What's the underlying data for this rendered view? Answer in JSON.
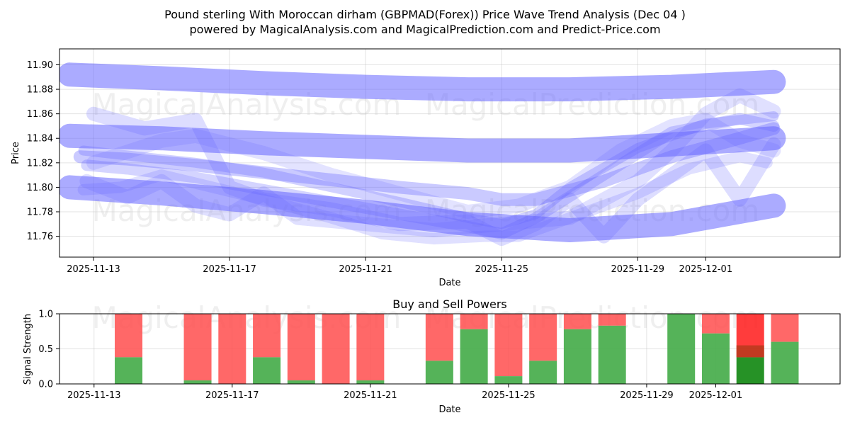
{
  "chart_data": [
    {
      "type": "area",
      "title_line1": "Pound sterling With Moroccan dirham (GBPMAD(Forex)) Price Wave Trend Analysis (Dec 04 )",
      "title_line2": "powered by MagicalAnalysis.com and MagicalPrediction.com and Predict-Price.com",
      "xlabel": "Date",
      "ylabel": "Price",
      "ylim": [
        11.743,
        11.913
      ],
      "xlim": [
        -1.0,
        21.95
      ],
      "x_ticks": [
        {
          "x": 0,
          "label": "2025-11-13"
        },
        {
          "x": 4,
          "label": "2025-11-17"
        },
        {
          "x": 8,
          "label": "2025-11-21"
        },
        {
          "x": 12,
          "label": "2025-11-25"
        },
        {
          "x": 16,
          "label": "2025-11-29"
        },
        {
          "x": 18,
          "label": "2025-12-01"
        }
      ],
      "y_ticks": [
        11.76,
        11.78,
        11.8,
        11.82,
        11.84,
        11.86,
        11.88,
        11.9
      ],
      "y_tick_labels": [
        "11.76",
        "11.78",
        "11.80",
        "11.82",
        "11.84",
        "11.86",
        "11.88",
        "11.90"
      ],
      "band_color": "#6666ff",
      "series": [
        {
          "name": "upper-band",
          "x": [
            -0.7,
            2,
            5,
            8,
            11,
            14,
            17,
            20
          ],
          "values": [
            11.892,
            11.889,
            11.885,
            11.882,
            11.88,
            11.88,
            11.882,
            11.886
          ],
          "width": 34,
          "opacity": 0.55
        },
        {
          "name": "mid-band",
          "x": [
            -0.7,
            2,
            5,
            8,
            11,
            14,
            17,
            20
          ],
          "values": [
            11.842,
            11.84,
            11.836,
            11.833,
            11.83,
            11.83,
            11.835,
            11.84
          ],
          "width": 34,
          "opacity": 0.55
        },
        {
          "name": "lower-band",
          "x": [
            -0.7,
            2,
            5,
            8,
            11,
            14,
            17,
            20
          ],
          "values": [
            11.8,
            11.795,
            11.788,
            11.78,
            11.77,
            11.765,
            11.77,
            11.785
          ],
          "width": 34,
          "opacity": 0.55
        },
        {
          "name": "wave-1",
          "x": [
            -0.4,
            1,
            3,
            5,
            7,
            9,
            11,
            12,
            13,
            15,
            17,
            19,
            20
          ],
          "values": [
            11.825,
            11.823,
            11.818,
            11.812,
            11.806,
            11.8,
            11.795,
            11.79,
            11.79,
            11.805,
            11.825,
            11.84,
            11.848
          ],
          "width": 18,
          "opacity": 0.35
        },
        {
          "name": "wave-2",
          "x": [
            -0.3,
            1,
            3,
            5,
            7,
            9,
            11,
            12,
            13,
            14,
            16,
            18,
            20
          ],
          "values": [
            11.83,
            11.826,
            11.82,
            11.812,
            11.8,
            11.788,
            11.775,
            11.77,
            11.778,
            11.8,
            11.832,
            11.852,
            11.858
          ],
          "width": 14,
          "opacity": 0.3
        },
        {
          "name": "wave-3",
          "x": [
            -0.2,
            1,
            3,
            5,
            7,
            9,
            11,
            12,
            13,
            15,
            17,
            19,
            20
          ],
          "values": [
            11.818,
            11.815,
            11.808,
            11.798,
            11.788,
            11.778,
            11.768,
            11.762,
            11.775,
            11.81,
            11.845,
            11.856,
            11.85
          ],
          "width": 16,
          "opacity": 0.28
        },
        {
          "name": "wave-4",
          "x": [
            0,
            1.5,
            3,
            4,
            5,
            7,
            9,
            11,
            12,
            13,
            14,
            15,
            16,
            18,
            19,
            20
          ],
          "values": [
            11.86,
            11.848,
            11.855,
            11.8,
            11.79,
            11.782,
            11.77,
            11.772,
            11.758,
            11.77,
            11.79,
            11.76,
            11.79,
            11.83,
            11.79,
            11.835
          ],
          "width": 20,
          "opacity": 0.22
        },
        {
          "name": "wave-5",
          "x": [
            -0.2,
            1,
            2,
            3,
            4,
            5,
            6,
            8,
            10,
            12,
            14,
            15,
            16,
            17,
            18,
            19,
            20
          ],
          "values": [
            11.805,
            11.792,
            11.805,
            11.785,
            11.778,
            11.795,
            11.775,
            11.77,
            11.765,
            11.77,
            11.775,
            11.79,
            11.805,
            11.83,
            11.86,
            11.875,
            11.862
          ],
          "width": 20,
          "opacity": 0.2
        },
        {
          "name": "wave-6",
          "x": [
            0,
            2,
            3,
            5,
            7,
            9,
            11,
            12.5,
            14,
            15.5,
            17,
            18,
            19,
            20
          ],
          "values": [
            11.82,
            11.838,
            11.842,
            11.828,
            11.81,
            11.795,
            11.78,
            11.785,
            11.8,
            11.83,
            11.85,
            11.855,
            11.838,
            11.83
          ],
          "width": 20,
          "opacity": 0.18
        },
        {
          "name": "wave-7",
          "x": [
            -0.3,
            0.8,
            2,
            3.5,
            5,
            7,
            8.5,
            10,
            11.5,
            12.5,
            14,
            16,
            17.5,
            19,
            19.8
          ],
          "values": [
            11.798,
            11.8,
            11.81,
            11.8,
            11.79,
            11.775,
            11.762,
            11.758,
            11.76,
            11.76,
            11.775,
            11.795,
            11.815,
            11.825,
            11.82
          ],
          "width": 16,
          "opacity": 0.2
        }
      ]
    },
    {
      "type": "bar",
      "title": "Buy and Sell Powers",
      "xlabel": "Date",
      "ylabel": "Signal Strength",
      "ylim": [
        0,
        1.0
      ],
      "xlim": [
        -1.0,
        21.6
      ],
      "y_ticks": [
        0.0,
        0.5,
        1.0
      ],
      "y_tick_labels": [
        "0.0",
        "0.5",
        "1.0"
      ],
      "x_ticks": [
        {
          "x": 0,
          "label": "2025-11-13"
        },
        {
          "x": 4,
          "label": "2025-11-17"
        },
        {
          "x": 8,
          "label": "2025-11-21"
        },
        {
          "x": 12,
          "label": "2025-11-25"
        },
        {
          "x": 16,
          "label": "2025-11-29"
        },
        {
          "x": 18,
          "label": "2025-12-01"
        }
      ],
      "buy_color": "#4caf50",
      "sell_color": "#ff4d4d",
      "highlight_buy_color": "#1a8c1a",
      "highlight_sell_color": "#ff1a1a",
      "bar_width": 0.8,
      "bars": [
        {
          "x": 1,
          "buy": 0.38
        },
        {
          "x": 3,
          "buy": 0.05
        },
        {
          "x": 4,
          "buy": 0.0
        },
        {
          "x": 5,
          "buy": 0.38
        },
        {
          "x": 6,
          "buy": 0.05
        },
        {
          "x": 7,
          "buy": 0.0
        },
        {
          "x": 8,
          "buy": 0.05
        },
        {
          "x": 10,
          "buy": 0.33
        },
        {
          "x": 11,
          "buy": 0.78
        },
        {
          "x": 12,
          "buy": 0.11
        },
        {
          "x": 13,
          "buy": 0.33
        },
        {
          "x": 14,
          "buy": 0.78
        },
        {
          "x": 15,
          "buy": 0.83
        },
        {
          "x": 17,
          "buy": 1.0
        },
        {
          "x": 18,
          "buy": 0.72
        },
        {
          "x": 19,
          "buy": 0.38,
          "highlight": true
        },
        {
          "x": 20,
          "buy": 0.6
        }
      ]
    }
  ],
  "watermarks": {
    "left": "MagicalAnalysis.com",
    "right": "MagicalPrediction.com"
  }
}
